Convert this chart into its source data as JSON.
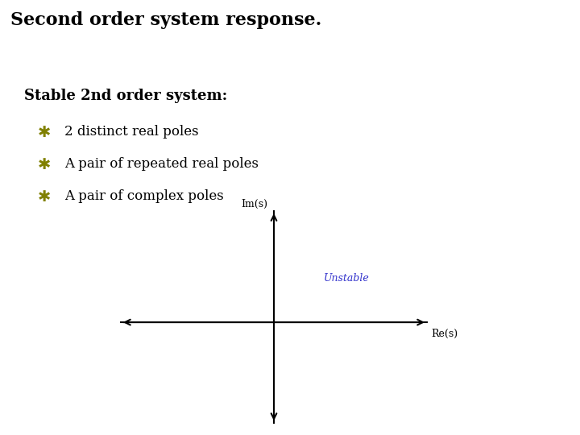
{
  "title": "Second order system response.",
  "title_bg_color": "#dde0f0",
  "title_fontsize": 16,
  "title_font": "serif",
  "title_bold": true,
  "body_bg_color": "#ffffff",
  "subtitle": "Stable 2nd order system:",
  "subtitle_fontsize": 13,
  "subtitle_bold": true,
  "bullet_symbol": "✱",
  "bullet_color": "#808000",
  "bullet_items": [
    "2 distinct real poles",
    "A pair of repeated real poles",
    "A pair of complex poles"
  ],
  "bullet_fontsize": 12,
  "bullet_font": "serif",
  "axis_label_im": "Im(s)",
  "axis_label_re": "Re(s)",
  "axis_label_fontsize": 9,
  "unstable_label": "Unstable",
  "unstable_label_color": "#3333cc",
  "unstable_label_fontsize": 9,
  "hatch_color": "#000000",
  "hatch_pattern": "///",
  "hatch_facecolor": "#ffffff"
}
